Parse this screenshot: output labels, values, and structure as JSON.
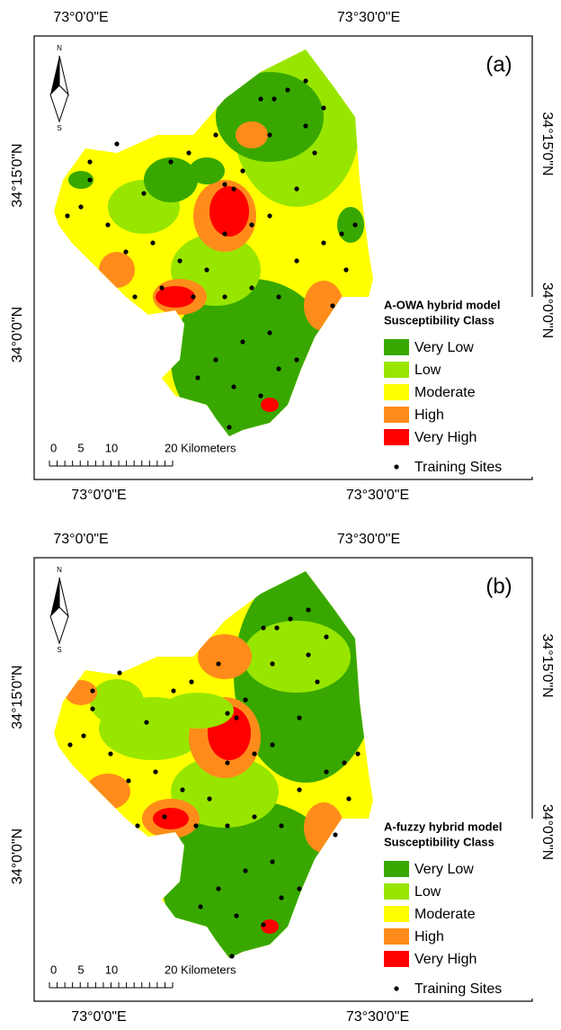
{
  "panels": [
    {
      "label": "(a)",
      "top_labels": [
        "73°0'0\"E",
        "73°30'0\"E"
      ],
      "bottom_labels": [
        "73°0'0\"E",
        "73°30'0\"E"
      ],
      "left_labels": [
        "34°15'0\"N",
        "34°0'0\"N"
      ],
      "right_labels": [
        "34°15'0\"N",
        "34°0'0\"N"
      ],
      "north": [
        "N",
        "S"
      ],
      "scale": [
        "0",
        "5",
        "10",
        "20 Kilometers"
      ],
      "legend": {
        "title": [
          "A-OWA hybrid model",
          "Susceptibility Class"
        ],
        "classes": [
          {
            "name": "Very Low",
            "color": "#38a800"
          },
          {
            "name": "Low",
            "color": "#98e600"
          },
          {
            "name": "Moderate",
            "color": "#ffff00"
          },
          {
            "name": "High",
            "color": "#ff8c1a"
          },
          {
            "name": "Very High",
            "color": "#ff0000"
          }
        ],
        "points": "Training Sites"
      }
    },
    {
      "label": "(b)",
      "top_labels": [
        "73°0'0\"E",
        "73°30'0\"E"
      ],
      "bottom_labels": [
        "73°0'0\"E",
        "73°30'0\"E"
      ],
      "left_labels": [
        "34°15'0\"N",
        "34°0'0\"N"
      ],
      "right_labels": [
        "34°15'0\"N",
        "34°0'0\"N"
      ],
      "north": [
        "N",
        "S"
      ],
      "scale": [
        "0",
        "5",
        "10",
        "20 Kilometers"
      ],
      "legend": {
        "title": [
          "A-fuzzy hybrid model",
          "Susceptibility Class"
        ],
        "classes": [
          {
            "name": "Very Low",
            "color": "#38a800"
          },
          {
            "name": "Low",
            "color": "#98e600"
          },
          {
            "name": "Moderate",
            "color": "#ffff00"
          },
          {
            "name": "High",
            "color": "#ff8c1a"
          },
          {
            "name": "Very High",
            "color": "#ff0000"
          }
        ],
        "points": "Training Sites"
      }
    }
  ]
}
